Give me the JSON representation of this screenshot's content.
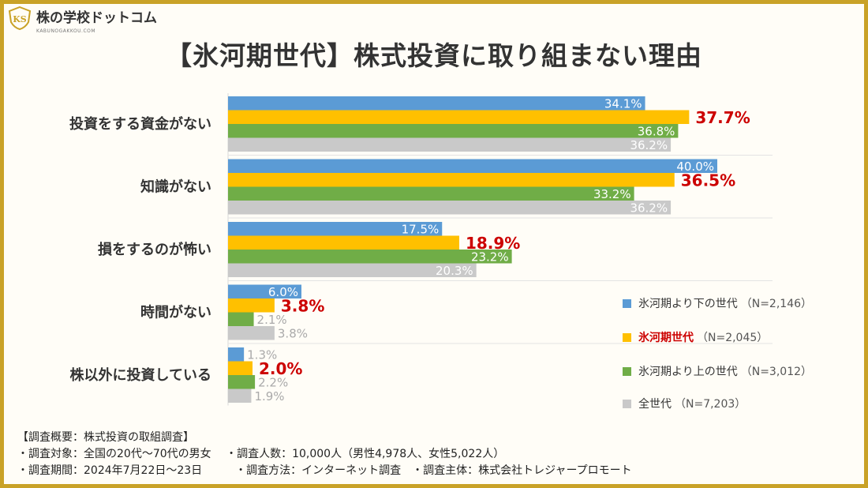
{
  "brand": {
    "name": "株の学校ドットコム",
    "url": "KABUNOGAKKOU.COM",
    "mark_text": "KS"
  },
  "colors": {
    "below": "#5b9bd5",
    "hyouga": "#ffc000",
    "above": "#70ad47",
    "all": "#c9c9c9",
    "highlight": "#cc0000",
    "border": "#c9a227"
  },
  "chart_data": {
    "type": "bar",
    "orientation": "horizontal",
    "title": "【氷河期世代】株式投資に取り組まない理由",
    "categories": [
      "投資をする資金がない",
      "知識がない",
      "損をするのが怖い",
      "時間がない",
      "株以外に投資している"
    ],
    "series": [
      {
        "name": "氷河期より下の世代",
        "n": "（N=2,146）",
        "color_key": "below",
        "values": [
          34.1,
          40.0,
          17.5,
          6.0,
          1.3
        ]
      },
      {
        "name": "氷河期世代",
        "n": "（N=2,045）",
        "color_key": "hyouga",
        "values": [
          37.7,
          36.5,
          18.9,
          3.8,
          2.0
        ],
        "highlight": true
      },
      {
        "name": "氷河期より上の世代",
        "n": "（N=3,012）",
        "color_key": "above",
        "values": [
          36.8,
          33.2,
          23.2,
          2.1,
          2.2
        ]
      },
      {
        "name": "全世代",
        "n": "（N=7,203）",
        "color_key": "all",
        "values": [
          36.2,
          36.2,
          20.3,
          3.8,
          1.9
        ]
      }
    ],
    "value_suffix": "%",
    "xlim": [
      0,
      50
    ],
    "legend_position": "right",
    "grid": false
  },
  "notes": [
    "【調査概要：株式投資の取組調査】",
    "・調査対象：全国の20代～70代の男女　 ・調査人数：10,000人（男性4,978人、女性5,022人）",
    "・調査期間：2024年7月22日～23日　　　・調査方法：インターネット調査　・調査主体：株式会社トレジャープロモート"
  ]
}
